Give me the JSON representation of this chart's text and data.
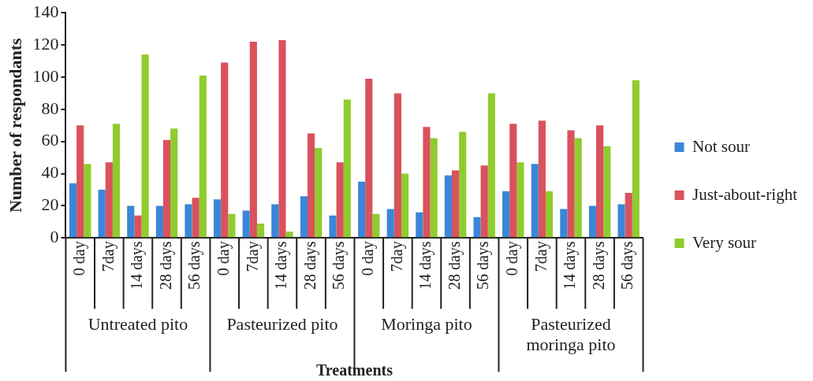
{
  "chart_data": {
    "type": "bar",
    "xlabel": "Treatments",
    "ylabel": "Number of respondants",
    "categories": [
      "0 day",
      "7day",
      "14 days",
      "28 days",
      "56 days",
      "0 day",
      "7day",
      "14 days",
      "28 days",
      "56 days",
      "0 day",
      "7day",
      "14 days",
      "28 days",
      "56 days",
      "0 day",
      "7day",
      "14 days",
      "28 days",
      "56 days"
    ],
    "annotations": [
      "Untreated pito",
      "Pasteurized pito",
      "Moringa pito",
      "Pasteurized moringa pito"
    ],
    "series": [
      {
        "name": "Not sour",
        "color": "#3b86d8",
        "values": [
          34,
          30,
          20,
          20,
          21,
          24,
          17,
          21,
          26,
          14,
          35,
          18,
          16,
          39,
          13,
          29,
          46,
          18,
          20,
          21
        ]
      },
      {
        "name": "Just-about-right",
        "color": "#d9525c",
        "values": [
          70,
          47,
          14,
          61,
          25,
          109,
          122,
          123,
          65,
          47,
          99,
          90,
          69,
          42,
          45,
          71,
          73,
          67,
          70,
          28
        ]
      },
      {
        "name": "Very sour",
        "color": "#8fcc2e",
        "values": [
          46,
          71,
          114,
          68,
          101,
          15,
          9,
          4,
          56,
          86,
          15,
          40,
          62,
          66,
          90,
          47,
          29,
          62,
          57,
          98
        ]
      }
    ],
    "ylim": [
      0,
      140
    ],
    "yticks": [
      0,
      20,
      40,
      60,
      80,
      100,
      120,
      140
    ],
    "grid": false,
    "legend": "right"
  }
}
